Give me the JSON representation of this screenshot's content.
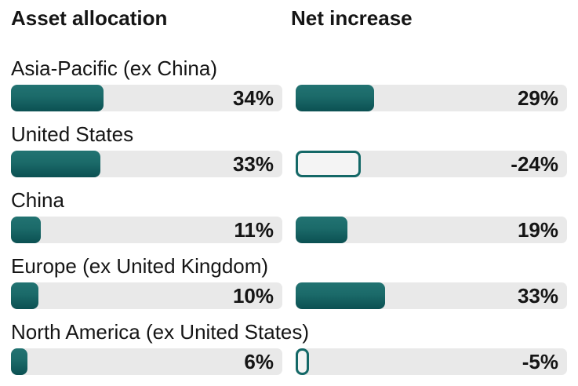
{
  "headers": {
    "left": "Asset allocation",
    "right": "Net increase"
  },
  "rows": [
    {
      "label": "Asia-Pacific (ex China)",
      "asset": 34,
      "asset_label": "34%",
      "net": 29,
      "net_label": "29%"
    },
    {
      "label": "United States",
      "asset": 33,
      "asset_label": "33%",
      "net": -24,
      "net_label": "-24%"
    },
    {
      "label": "China",
      "asset": 11,
      "asset_label": "11%",
      "net": 19,
      "net_label": "19%"
    },
    {
      "label": "Europe (ex United Kingdom)",
      "asset": 10,
      "asset_label": "10%",
      "net": 33,
      "net_label": "33%"
    },
    {
      "label": "North America (ex United States)",
      "asset": 6,
      "asset_label": "6%",
      "net": -5,
      "net_label": "-5%"
    }
  ],
  "colors": {
    "bar_fill_top": "#227372",
    "bar_fill_bottom": "#0b5052",
    "bar_outline": "#146867",
    "track": "#e9e9e9",
    "text": "#151515"
  },
  "chart_data": {
    "type": "bar",
    "orientation": "horizontal",
    "unit": "%",
    "categories": [
      "Asia-Pacific (ex China)",
      "United States",
      "China",
      "Europe (ex United Kingdom)",
      "North America (ex United States)"
    ],
    "series": [
      {
        "name": "Asset allocation",
        "values": [
          34,
          33,
          11,
          10,
          6
        ]
      },
      {
        "name": "Net increase",
        "values": [
          29,
          -24,
          19,
          33,
          -5
        ]
      }
    ],
    "xlim": [
      0,
      100
    ],
    "grid": false,
    "legend_position": "column-headers",
    "style_note": "negative values drawn as outlined (hollow) bars with width = |value|; value labels right-aligned inside gray tracks"
  }
}
